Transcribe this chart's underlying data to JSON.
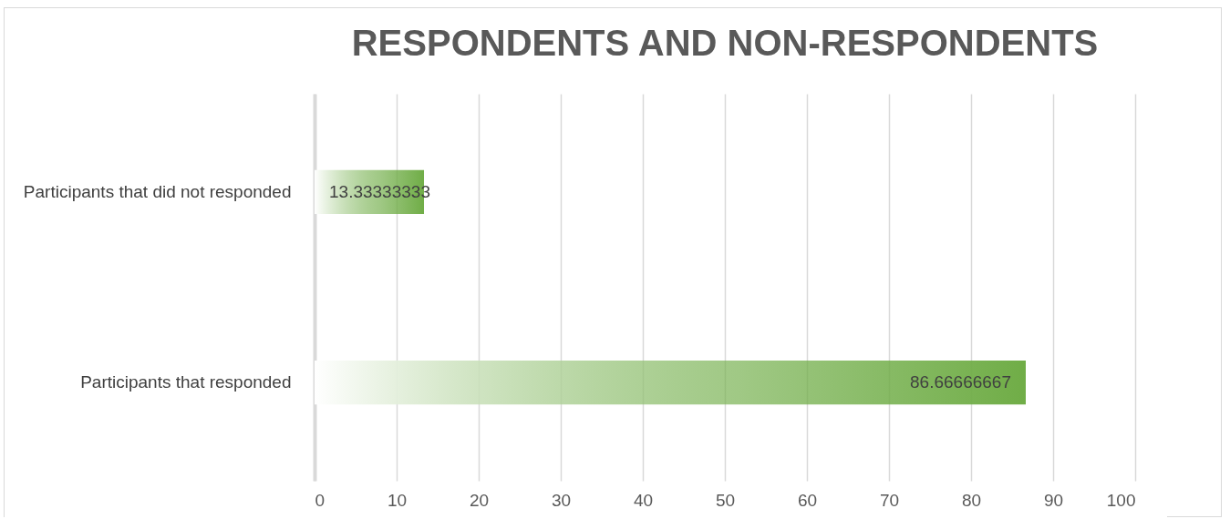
{
  "chart_data": {
    "type": "bar",
    "orientation": "horizontal",
    "title": "RESPONDENTS AND NON-RESPONDENTS",
    "categories": [
      "Participants that did not responded",
      "Participants that  responded"
    ],
    "values": [
      13.33333333,
      86.66666667
    ],
    "color": "#70ad47",
    "xlim": [
      0,
      100
    ],
    "xticks": [
      0,
      10,
      20,
      30,
      40,
      50,
      60,
      70,
      80,
      90,
      100
    ],
    "grid": "x",
    "data_labels": true
  }
}
